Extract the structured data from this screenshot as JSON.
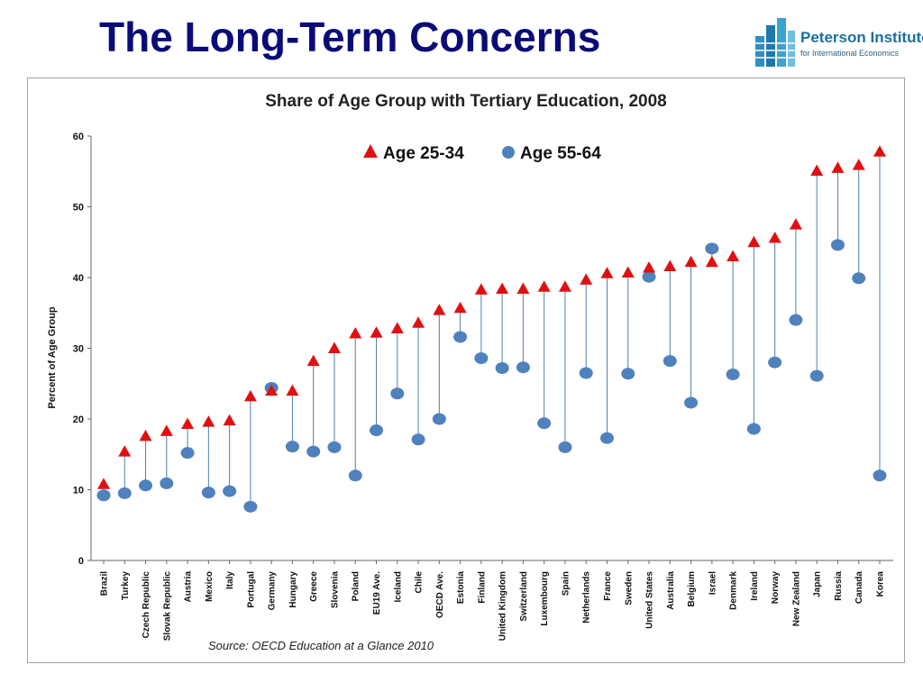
{
  "slide": {
    "title": "The Long-Term Concerns"
  },
  "logo": {
    "name": "Peterson Institute",
    "subtitle": "for International Economics"
  },
  "source": "Source: OECD Education at a Glance 2010",
  "colors": {
    "title": "#0b0b78",
    "triangle": "#e01010",
    "circle": "#4f81bd",
    "connector": "#4f7fae",
    "axis": "#666666"
  },
  "chart_data": {
    "type": "scatter",
    "title": "Share of Age Group with Tertiary Education, 2008",
    "ylabel": "Percent of Age Group",
    "xlabel": "",
    "ylim": [
      0,
      60
    ],
    "yticks": [
      0,
      10,
      20,
      30,
      40,
      50,
      60
    ],
    "grid": false,
    "legend_position": "top",
    "categories": [
      "Brazil",
      "Turkey",
      "Czech Republic",
      "Slovak Republic",
      "Austria",
      "Mexico",
      "Italy",
      "Portugal",
      "Germany",
      "Hungary",
      "Greece",
      "Slovenia",
      "Poland",
      "EU19 Ave.",
      "Iceland",
      "Chile",
      "OECD Ave.",
      "Estonia",
      "Finland",
      "United Kingdom",
      "Switzerland",
      "Luxembourg",
      "Spain",
      "Netherlands",
      "France",
      "Sweden",
      "United States",
      "Australia",
      "Belgium",
      "Israel",
      "Denmark",
      "Ireland",
      "Norway",
      "New Zealand",
      "Japan",
      "Russia",
      "Canada",
      "Korea"
    ],
    "series": [
      {
        "name": "Age 25-34",
        "marker": "triangle",
        "values": [
          10.8,
          15.4,
          17.6,
          18.3,
          19.3,
          19.6,
          19.8,
          23.2,
          24.0,
          24.0,
          28.2,
          30.0,
          32.1,
          32.2,
          32.8,
          33.6,
          35.4,
          35.7,
          38.3,
          38.4,
          38.4,
          38.7,
          38.7,
          39.7,
          40.6,
          40.7,
          41.4,
          41.6,
          42.2,
          42.2,
          43.0,
          45.0,
          45.6,
          47.5,
          55.1,
          55.5,
          55.9,
          57.8
        ]
      },
      {
        "name": "Age 55-64",
        "marker": "circle",
        "values": [
          9.2,
          9.5,
          10.6,
          10.9,
          15.2,
          9.6,
          9.8,
          7.6,
          24.4,
          16.1,
          15.4,
          16.0,
          12.0,
          18.4,
          23.6,
          17.1,
          20.0,
          31.6,
          28.6,
          27.2,
          27.3,
          19.4,
          16.0,
          26.5,
          17.3,
          26.4,
          40.1,
          28.2,
          22.3,
          44.1,
          26.3,
          18.6,
          28.0,
          34.0,
          26.1,
          44.6,
          39.9,
          12.0
        ]
      }
    ]
  }
}
